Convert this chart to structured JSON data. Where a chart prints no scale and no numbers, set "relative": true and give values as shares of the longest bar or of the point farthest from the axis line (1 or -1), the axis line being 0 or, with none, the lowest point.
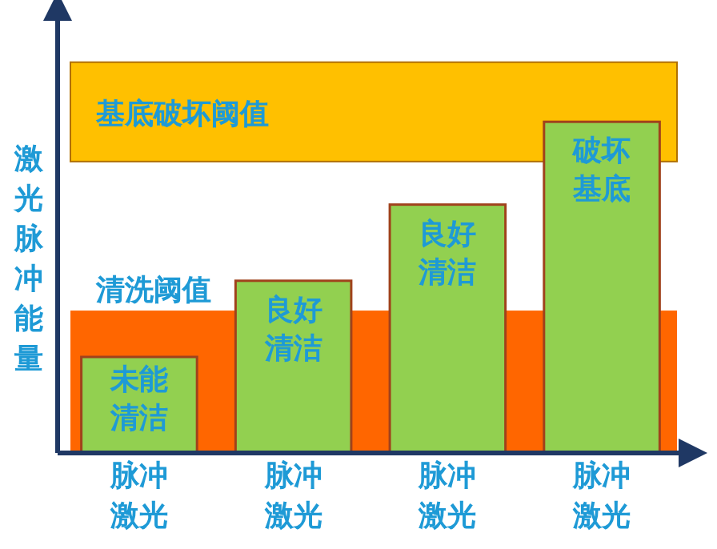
{
  "chart_data": {
    "type": "bar",
    "ylabel": "激光脉冲能量",
    "categories": [
      "脉冲激光",
      "脉冲激光",
      "脉冲激光",
      "脉冲激光"
    ],
    "values": [
      0.29,
      0.52,
      0.75,
      1
    ],
    "color": "#92d050",
    "relative": true,
    "annotations": [
      "未能清洁",
      "良好清洁",
      "良好清洁",
      "破坏基底"
    ],
    "bands": [
      {
        "axis": "y",
        "from": 0,
        "to": 0.43,
        "label": "清洗阈值",
        "color": "#ff6600"
      },
      {
        "axis": "y",
        "from": 0.88,
        "to": 1.18,
        "label": "基底破坏阈值",
        "color": "#ffc000"
      }
    ]
  }
}
